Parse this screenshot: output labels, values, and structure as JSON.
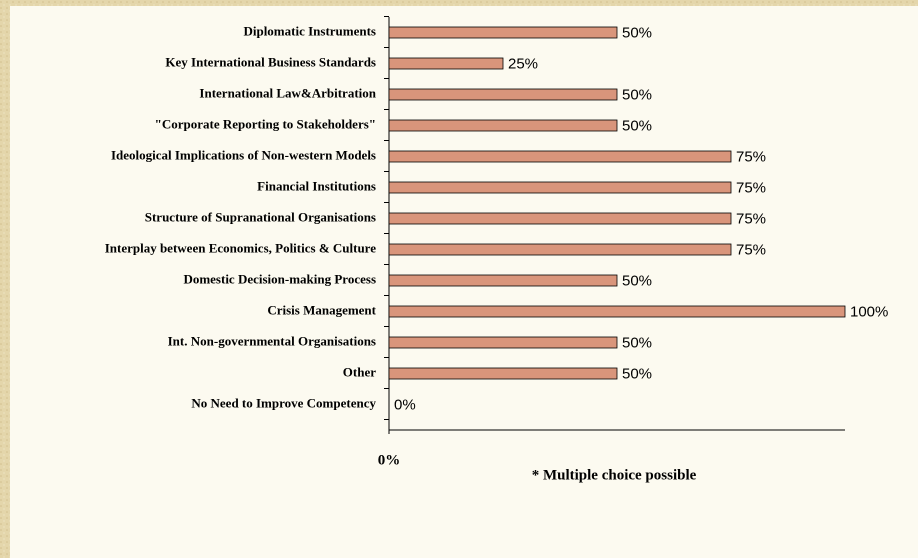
{
  "chart_data": {
    "type": "bar",
    "orientation": "horizontal",
    "categories": [
      "Diplomatic Instruments",
      "Key International Business Standards",
      "International Law&Arbitration",
      "\"Corporate Reporting to Stakeholders\"",
      "Ideological Implications of Non-western Models",
      "Financial Institutions",
      "Structure of Supranational Organisations",
      "Interplay between Economics, Politics & Culture",
      "Domestic Decision-making Process",
      "Crisis Management",
      "Int. Non-governmental Organisations",
      "Other",
      "No Need to Improve Competency"
    ],
    "values": [
      50,
      25,
      50,
      50,
      75,
      75,
      75,
      75,
      50,
      100,
      50,
      50,
      0
    ],
    "value_labels": [
      "50%",
      "25%",
      "50%",
      "50%",
      "75%",
      "75%",
      "75%",
      "75%",
      "50%",
      "100%",
      "50%",
      "50%",
      "0%"
    ],
    "color": "#d9957b",
    "xlim": [
      0,
      100
    ],
    "xticks": [
      {
        "value": 0,
        "label": "0%"
      }
    ],
    "annotation": "* Multiple choice possible"
  }
}
